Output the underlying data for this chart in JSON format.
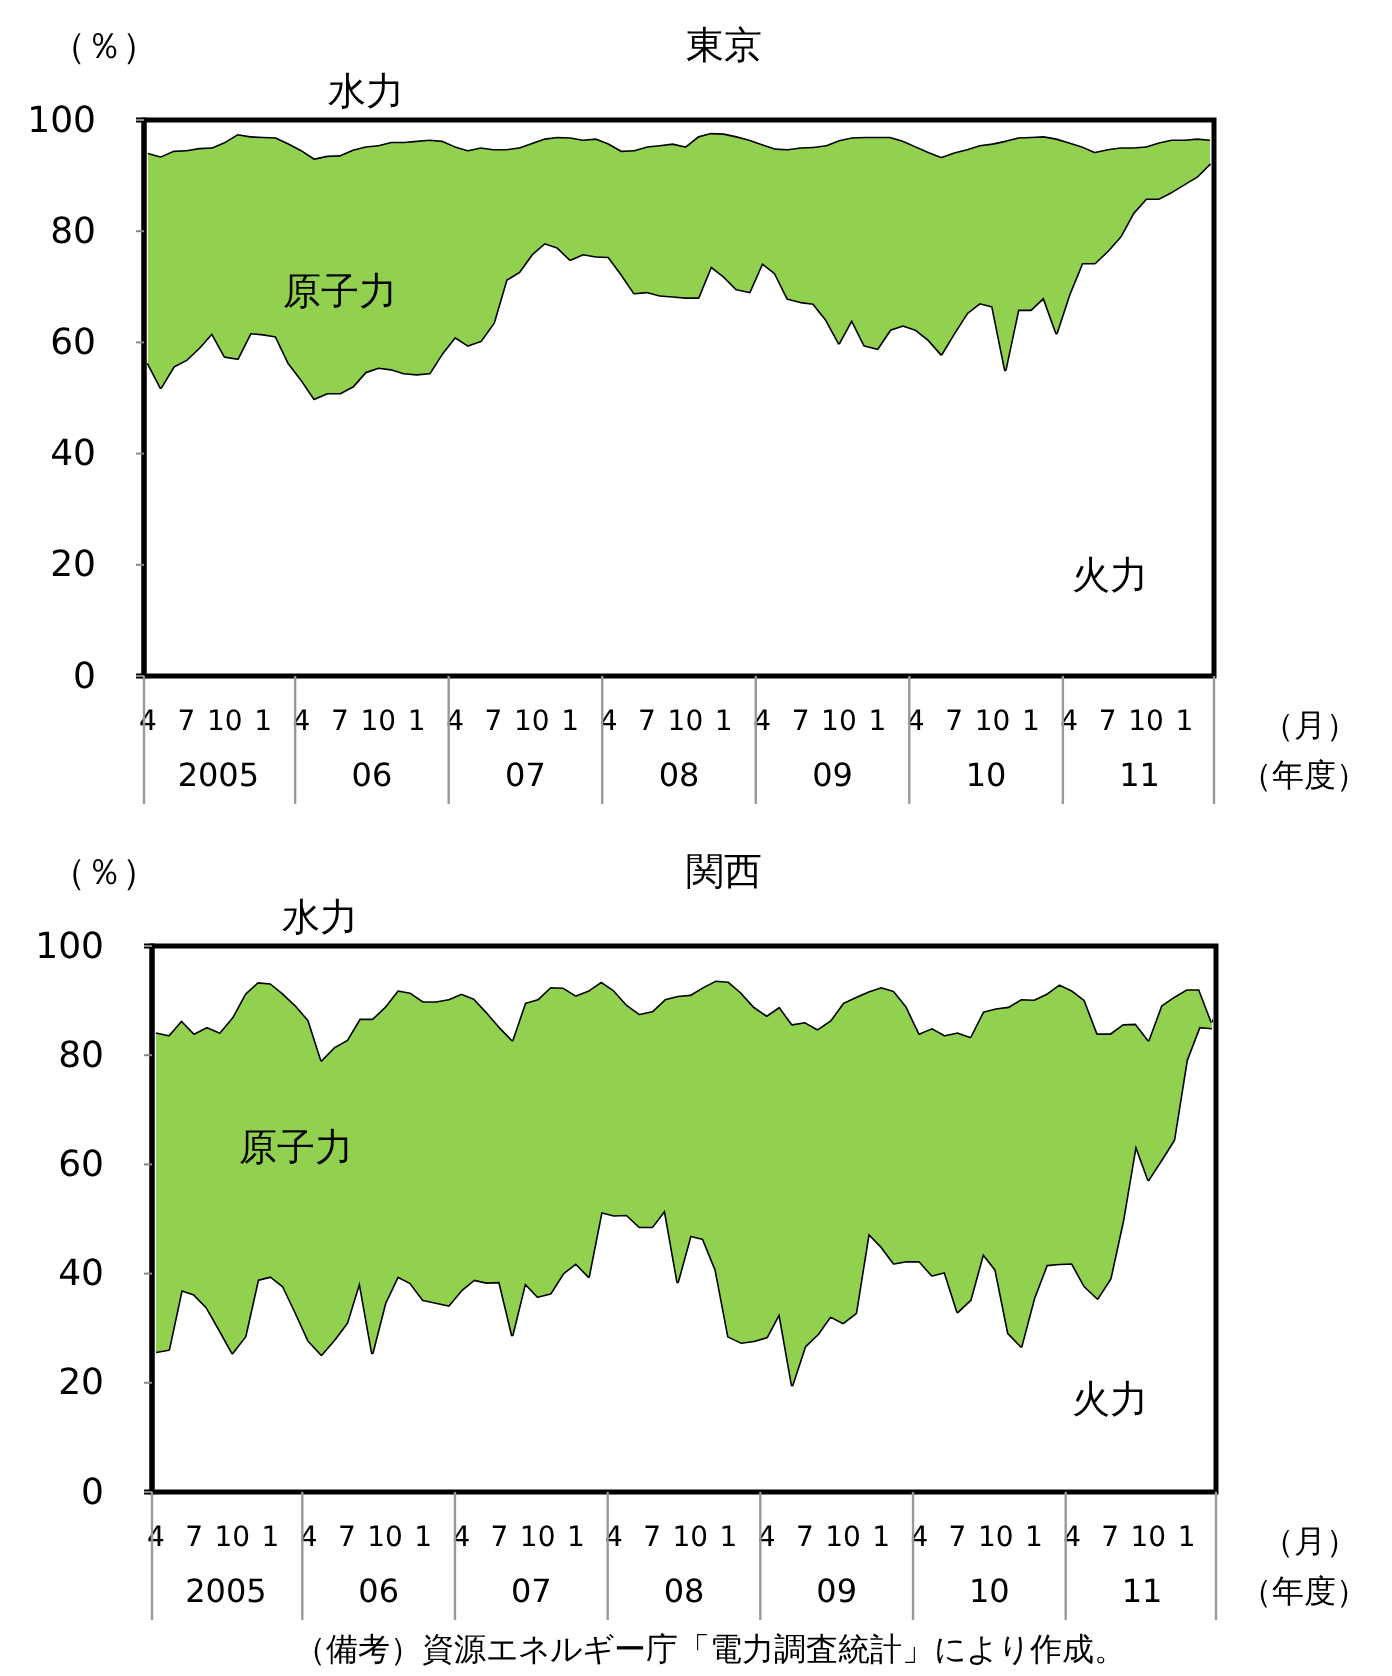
{
  "chart_data": [
    {
      "type": "area",
      "stacked": true,
      "title": "東京",
      "ylabel": "（％）",
      "xlabel": "（月）",
      "ylim": [
        0,
        100
      ],
      "yticks": [
        0,
        20,
        40,
        60,
        80,
        100
      ],
      "categories": [
        "4",
        null,
        null,
        "7",
        null,
        null,
        "10",
        null,
        null,
        "1",
        null,
        null,
        "4",
        null,
        null,
        "7",
        null,
        null,
        "10",
        null,
        null,
        "1",
        null,
        null,
        "4",
        null,
        null,
        "7",
        null,
        null,
        "10",
        null,
        null,
        "1",
        null,
        null,
        "4",
        null,
        null,
        "7",
        null,
        null,
        "10",
        null,
        null,
        "1",
        null,
        null,
        "4",
        null,
        null,
        "7",
        null,
        null,
        "10",
        null,
        null,
        "1",
        null,
        null,
        "4",
        null,
        null,
        "7",
        null,
        null,
        "10",
        null,
        null,
        "1",
        null,
        null,
        "4",
        null,
        null,
        "7",
        null,
        null,
        "10",
        null,
        null,
        "1",
        null,
        null
      ],
      "series": [
        {
          "name": "火力",
          "color": "#ffffff",
          "values": [
            56.3,
            51.9,
            55.7,
            56.9,
            59.1,
            61.7,
            57.5,
            57.1,
            61.7,
            61.5,
            61.1,
            56.3,
            53.3,
            49.9,
            50.9,
            50.9,
            52.1,
            54.7,
            55.5,
            55.2,
            54.5,
            54.3,
            54.5,
            58.1,
            61.0,
            59.5,
            60.3,
            63.5,
            71.3,
            72.7,
            75.9,
            77.9,
            77.1,
            74.9,
            75.9,
            75.5,
            75.4,
            72.3,
            68.9,
            69.1,
            68.5,
            68.3,
            68.1,
            68.1,
            73.7,
            71.9,
            69.6,
            69.1,
            74.3,
            72.5,
            67.9,
            67.3,
            67.0,
            64.1,
            59.9,
            64.1,
            59.5,
            58.9,
            62.3,
            63.1,
            62.3,
            60.5,
            57.9,
            61.7,
            65.3,
            67.1,
            66.5,
            55.1,
            65.9,
            65.9,
            68.1,
            61.7,
            68.7,
            74.3,
            74.3,
            76.5,
            79.1,
            83.3,
            85.9,
            85.9,
            87.1,
            88.5,
            89.9,
            92.2
          ]
        },
        {
          "name": "原子力",
          "color": "#92d050",
          "values": [
            37.8,
            41.6,
            38.8,
            37.7,
            35.9,
            33.4,
            38.6,
            40.4,
            35.4,
            35.5,
            35.8,
            39.5,
            41.3,
            43.2,
            42.7,
            42.8,
            42.6,
            40.6,
            40.0,
            40.9,
            41.6,
            42.0,
            42.0,
            38.2,
            34.3,
            35.1,
            34.8,
            31.3,
            23.5,
            22.4,
            20.0,
            18.8,
            19.9,
            22.0,
            20.6,
            21.2,
            20.4,
            22.2,
            25.7,
            26.2,
            27.0,
            27.5,
            27.2,
            29.0,
            24.0,
            25.7,
            27.5,
            27.4,
            21.4,
            22.4,
            26.9,
            27.8,
            28.2,
            31.4,
            36.5,
            32.8,
            37.5,
            38.1,
            34.7,
            33.2,
            33.0,
            33.8,
            35.5,
            32.5,
            29.5,
            28.4,
            29.3,
            41.2,
            31.0,
            31.1,
            29.0,
            35.0,
            27.3,
            21.0,
            20.0,
            18.3,
            16.0,
            11.8,
            9.4,
            10.1,
            9.4,
            8.0,
            6.8,
            4.3
          ]
        },
        {
          "name": "水力",
          "color": "#ffffff",
          "values": [
            5.9,
            6.5,
            5.5,
            5.4,
            5.0,
            4.9,
            3.9,
            2.5,
            2.9,
            3.0,
            3.1,
            4.2,
            5.4,
            6.9,
            6.4,
            6.3,
            5.3,
            4.7,
            4.5,
            3.9,
            3.9,
            3.7,
            3.5,
            3.7,
            4.7,
            5.4,
            4.9,
            5.2,
            5.2,
            4.9,
            4.1,
            3.3,
            3.0,
            3.1,
            3.5,
            3.3,
            4.2,
            5.5,
            5.4,
            4.7,
            4.5,
            4.2,
            4.7,
            2.9,
            2.3,
            2.4,
            2.9,
            3.5,
            4.3,
            5.1,
            5.2,
            4.9,
            4.8,
            4.5,
            3.6,
            3.1,
            3.0,
            3.0,
            3.0,
            3.7,
            4.7,
            5.7,
            6.6,
            5.8,
            5.2,
            4.5,
            4.2,
            3.7,
            3.1,
            3.0,
            2.9,
            3.3,
            4.0,
            4.7,
            5.7,
            5.2,
            4.9,
            4.9,
            4.7,
            4.0,
            3.5,
            3.5,
            3.3,
            3.5
          ]
        }
      ],
      "annotations": [
        "2005",
        "06",
        "07",
        "08",
        "09",
        "10",
        "11",
        "（年度）"
      ]
    },
    {
      "type": "area",
      "stacked": true,
      "title": "関西",
      "ylabel": "（％）",
      "xlabel": "（月）",
      "ylim": [
        0,
        100
      ],
      "yticks": [
        0,
        20,
        40,
        60,
        80,
        100
      ],
      "categories": [
        "4",
        null,
        null,
        "7",
        null,
        null,
        "10",
        null,
        null,
        "1",
        null,
        null,
        "4",
        null,
        null,
        "7",
        null,
        null,
        "10",
        null,
        null,
        "1",
        null,
        null,
        "4",
        null,
        null,
        "7",
        null,
        null,
        "10",
        null,
        null,
        "1",
        null,
        null,
        "4",
        null,
        null,
        "7",
        null,
        null,
        "10",
        null,
        null,
        "1",
        null,
        null,
        "4",
        null,
        null,
        "7",
        null,
        null,
        "10",
        null,
        null,
        "1",
        null,
        null,
        "4",
        null,
        null,
        "7",
        null,
        null,
        "10",
        null,
        null,
        "1",
        null,
        null,
        "4",
        null,
        null,
        "7",
        null,
        null,
        "10",
        null,
        null,
        "1",
        null,
        null
      ],
      "series": [
        {
          "name": "火力",
          "color": "#ffffff",
          "values": [
            25.7,
            26.1,
            37.0,
            36.2,
            33.8,
            29.7,
            25.5,
            28.5,
            38.9,
            39.5,
            37.7,
            32.8,
            27.7,
            25.2,
            27.9,
            31.0,
            38.6,
            25.5,
            34.6,
            39.5,
            38.3,
            35.2,
            34.7,
            34.2,
            37.0,
            38.9,
            38.4,
            38.5,
            28.8,
            38.3,
            35.8,
            36.4,
            40.1,
            41.9,
            39.5,
            51.3,
            50.7,
            50.8,
            48.6,
            48.6,
            51.7,
            38.5,
            47.0,
            46.4,
            40.7,
            28.5,
            27.4,
            27.7,
            28.4,
            32.8,
            19.6,
            26.7,
            28.9,
            32.2,
            31.0,
            32.8,
            47.4,
            45.0,
            41.9,
            42.3,
            42.3,
            39.7,
            40.3,
            33.0,
            35.2,
            43.7,
            40.7,
            29.1,
            26.7,
            35.5,
            41.6,
            41.8,
            41.9,
            37.7,
            35.5,
            39.1,
            49.8,
            63.6,
            57.2,
            60.8,
            64.5,
            79.1,
            85.2,
            85.0
          ]
        },
        {
          "name": "原子力",
          "color": "#92d050",
          "values": [
            58.5,
            57.6,
            49.4,
            47.8,
            51.4,
            54.5,
            61.5,
            62.8,
            54.5,
            53.7,
            53.6,
            56.3,
            58.7,
            53.9,
            53.6,
            51.8,
            48.1,
            61.2,
            54.3,
            52.4,
            53.2,
            54.7,
            55.2,
            56.1,
            54.3,
            51.5,
            49.5,
            46.7,
            54.0,
            51.3,
            54.5,
            56.1,
            52.3,
            49.1,
            52.4,
            42.2,
            41.2,
            38.5,
            39.0,
            39.5,
            38.6,
            52.4,
            44.1,
            46.1,
            53.0,
            65.0,
            64.1,
            61.2,
            58.9,
            56.1,
            66.1,
            59.4,
            55.9,
            54.2,
            58.6,
            57.9,
            44.3,
            47.5,
            49.9,
            46.6,
            41.7,
            45.3,
            43.4,
            51.2,
            48.2,
            44.3,
            47.9,
            59.8,
            63.6,
            54.7,
            49.7,
            51.2,
            50.0,
            52.4,
            48.5,
            44.9,
            35.9,
            22.2,
            25.6,
            28.3,
            26.2,
            13.0,
            6.9,
            1.0
          ]
        },
        {
          "name": "水力",
          "color": "#ffffff",
          "values": [
            15.8,
            16.3,
            13.6,
            16.0,
            14.8,
            15.8,
            13.0,
            8.7,
            6.6,
            6.8,
            8.7,
            10.9,
            13.6,
            20.9,
            18.5,
            17.2,
            13.3,
            13.3,
            11.1,
            8.1,
            8.5,
            10.1,
            10.1,
            9.7,
            8.7,
            9.6,
            12.1,
            14.8,
            17.2,
            10.4,
            9.7,
            7.5,
            7.6,
            9.0,
            8.1,
            6.5,
            8.1,
            10.7,
            12.4,
            11.9,
            9.7,
            9.1,
            8.9,
            7.5,
            6.3,
            6.5,
            8.5,
            11.1,
            12.7,
            11.1,
            14.3,
            13.9,
            15.2,
            13.6,
            10.4,
            9.3,
            8.3,
            7.5,
            8.2,
            11.1,
            16.0,
            15.0,
            16.3,
            15.8,
            16.6,
            12.0,
            11.4,
            11.1,
            9.7,
            9.8,
            8.7,
            7.0,
            8.1,
            9.9,
            16.0,
            16.0,
            14.3,
            14.2,
            17.2,
            10.9,
            9.3,
            7.9,
            7.9,
            14.0
          ]
        }
      ],
      "annotations": [
        "2005",
        "06",
        "07",
        "08",
        "09",
        "10",
        "11",
        "（年度）",
        "（備考）資源エネルギー庁「電力調査統計」により作成。"
      ]
    }
  ]
}
